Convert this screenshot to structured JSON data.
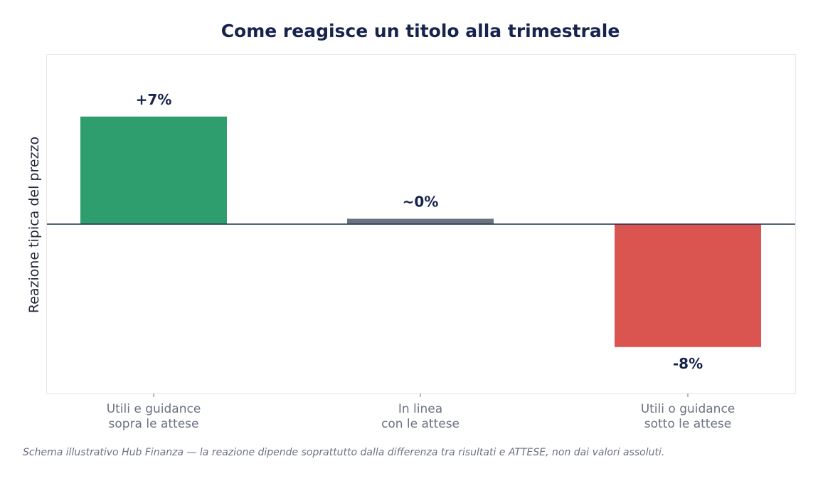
{
  "chart_data": {
    "type": "bar",
    "title": "Come reagisce un titolo alla trimestrale",
    "ylabel": "Reazione tipica del prezzo",
    "xlabel": "",
    "categories": [
      [
        "Utili e guidance",
        "sopra le attese"
      ],
      [
        "In linea",
        "con le attese"
      ],
      [
        "Utili o guidance",
        "sotto le attese"
      ]
    ],
    "values": [
      7,
      0.35,
      -8
    ],
    "value_labels": [
      "+7%",
      "~0%",
      "-8%"
    ],
    "bar_colors": [
      "#2e9e6e",
      "#6b7280",
      "#db5550"
    ],
    "ylim": [
      -11,
      11
    ],
    "grid": false,
    "baseline_color": "#1f2f4f"
  },
  "footnote": "Schema illustrativo Hub Finanza — la reazione dipende soprattutto dalla differenza tra risultati e ATTESE, non dai valori assoluti."
}
